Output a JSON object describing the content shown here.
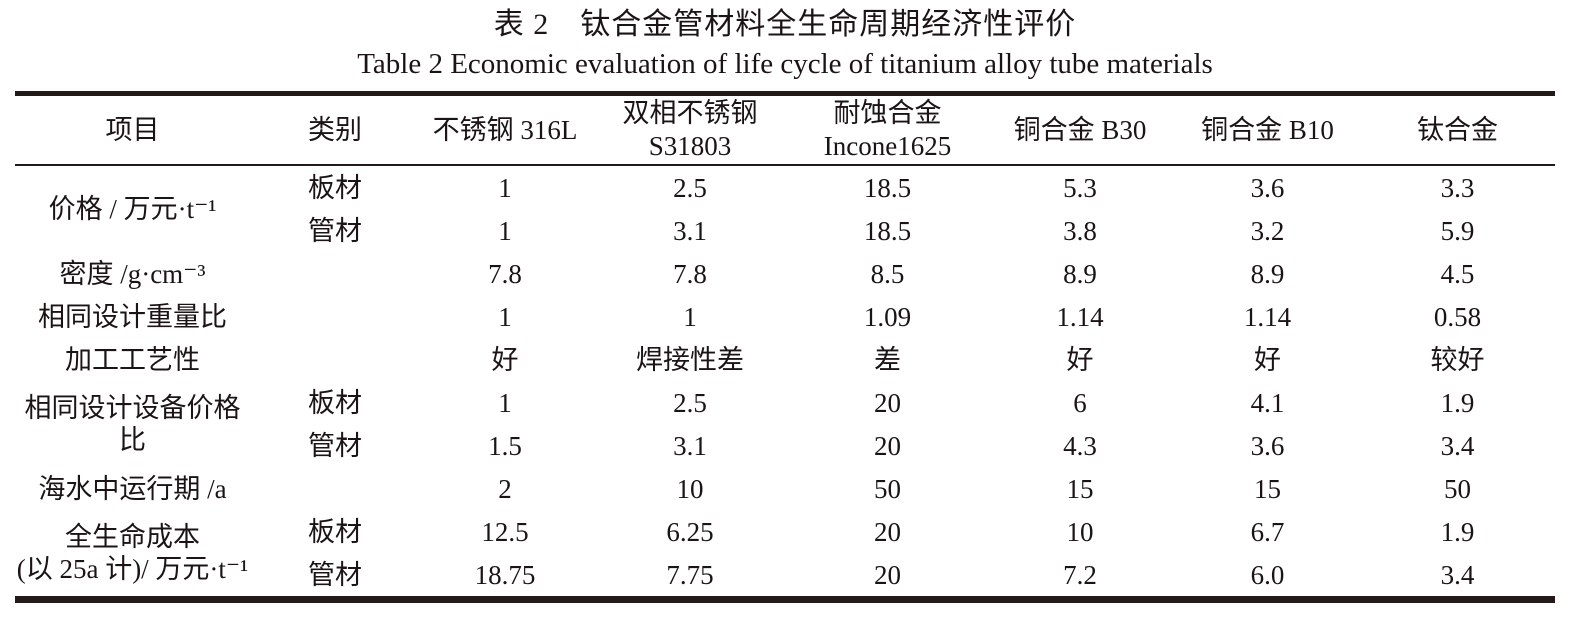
{
  "caption": {
    "zh": "表 2　钛合金管材料全生命周期经济性评价",
    "en": "Table 2 Economic evaluation of life cycle of titanium alloy tube materials"
  },
  "table": {
    "columns": [
      "项目",
      "类别",
      "不锈钢 316L",
      "双相不锈钢\nS31803",
      "耐蚀合金\nIncone1625",
      "铜合金 B30",
      "铜合金 B10",
      "钛合金"
    ],
    "row_groups": [
      {
        "item": "价格 / 万元·t⁻¹",
        "sub_rows": [
          {
            "category": "板材",
            "values": [
              "1",
              "2.5",
              "18.5",
              "5.3",
              "3.6",
              "3.3"
            ]
          },
          {
            "category": "管材",
            "values": [
              "1",
              "3.1",
              "18.5",
              "3.8",
              "3.2",
              "5.9"
            ]
          }
        ]
      },
      {
        "item": "密度 /g·cm⁻³",
        "sub_rows": [
          {
            "category": "",
            "values": [
              "7.8",
              "7.8",
              "8.5",
              "8.9",
              "8.9",
              "4.5"
            ]
          }
        ]
      },
      {
        "item": "相同设计重量比",
        "sub_rows": [
          {
            "category": "",
            "values": [
              "1",
              "1",
              "1.09",
              "1.14",
              "1.14",
              "0.58"
            ]
          }
        ]
      },
      {
        "item": "加工工艺性",
        "sub_rows": [
          {
            "category": "",
            "values": [
              "好",
              "焊接性差",
              "差",
              "好",
              "好",
              "较好"
            ]
          }
        ]
      },
      {
        "item": "相同设计设备价格比",
        "sub_rows": [
          {
            "category": "板材",
            "values": [
              "1",
              "2.5",
              "20",
              "6",
              "4.1",
              "1.9"
            ]
          },
          {
            "category": "管材",
            "values": [
              "1.5",
              "3.1",
              "20",
              "4.3",
              "3.6",
              "3.4"
            ]
          }
        ]
      },
      {
        "item": "海水中运行期 /a",
        "sub_rows": [
          {
            "category": "",
            "values": [
              "2",
              "10",
              "50",
              "15",
              "15",
              "50"
            ]
          }
        ]
      },
      {
        "item": "全生命成本\n(以 25a 计)/ 万元·t⁻¹",
        "sub_rows": [
          {
            "category": "板材",
            "values": [
              "12.5",
              "6.25",
              "20",
              "10",
              "6.7",
              "1.9"
            ]
          },
          {
            "category": "管材",
            "values": [
              "18.75",
              "7.75",
              "20",
              "7.2",
              "6.0",
              "3.4"
            ]
          }
        ]
      }
    ]
  }
}
